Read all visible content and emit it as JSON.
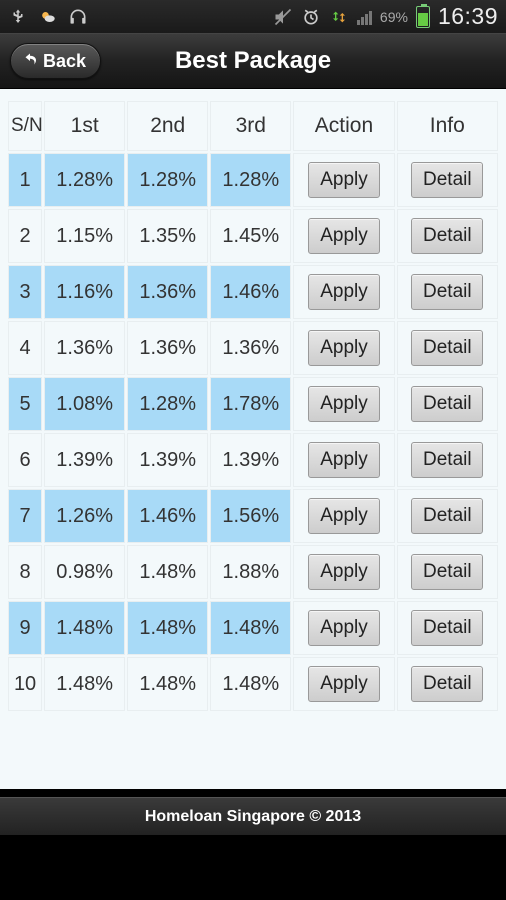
{
  "status": {
    "time": "16:39",
    "battery_percent": "69%",
    "icons_left": [
      "usb",
      "weather",
      "headphones"
    ],
    "icons_right": [
      "mute",
      "alarm",
      "sync",
      "signal",
      "battery"
    ]
  },
  "titlebar": {
    "back_label": "Back",
    "page_title": "Best Package"
  },
  "table": {
    "columns": [
      "S/N",
      "1st",
      "2nd",
      "3rd",
      "Action",
      "Info"
    ],
    "action_label": "Apply",
    "info_label": "Detail",
    "rows": [
      {
        "sn": "1",
        "y1": "1.28%",
        "y2": "1.28%",
        "y3": "1.28%"
      },
      {
        "sn": "2",
        "y1": "1.15%",
        "y2": "1.35%",
        "y3": "1.45%"
      },
      {
        "sn": "3",
        "y1": "1.16%",
        "y2": "1.36%",
        "y3": "1.46%"
      },
      {
        "sn": "4",
        "y1": "1.36%",
        "y2": "1.36%",
        "y3": "1.36%"
      },
      {
        "sn": "5",
        "y1": "1.08%",
        "y2": "1.28%",
        "y3": "1.78%"
      },
      {
        "sn": "6",
        "y1": "1.39%",
        "y2": "1.39%",
        "y3": "1.39%"
      },
      {
        "sn": "7",
        "y1": "1.26%",
        "y2": "1.46%",
        "y3": "1.56%"
      },
      {
        "sn": "8",
        "y1": "0.98%",
        "y2": "1.48%",
        "y3": "1.88%"
      },
      {
        "sn": "9",
        "y1": "1.48%",
        "y2": "1.48%",
        "y3": "1.48%"
      },
      {
        "sn": "10",
        "y1": "1.48%",
        "y2": "1.48%",
        "y3": "1.48%"
      }
    ]
  },
  "footer": {
    "text": "Homeloan Singapore © 2013"
  },
  "colors": {
    "row_highlight": "#a8daf7",
    "row_plain": "#f3f9fb",
    "button_bg": "#d8d8d8"
  }
}
